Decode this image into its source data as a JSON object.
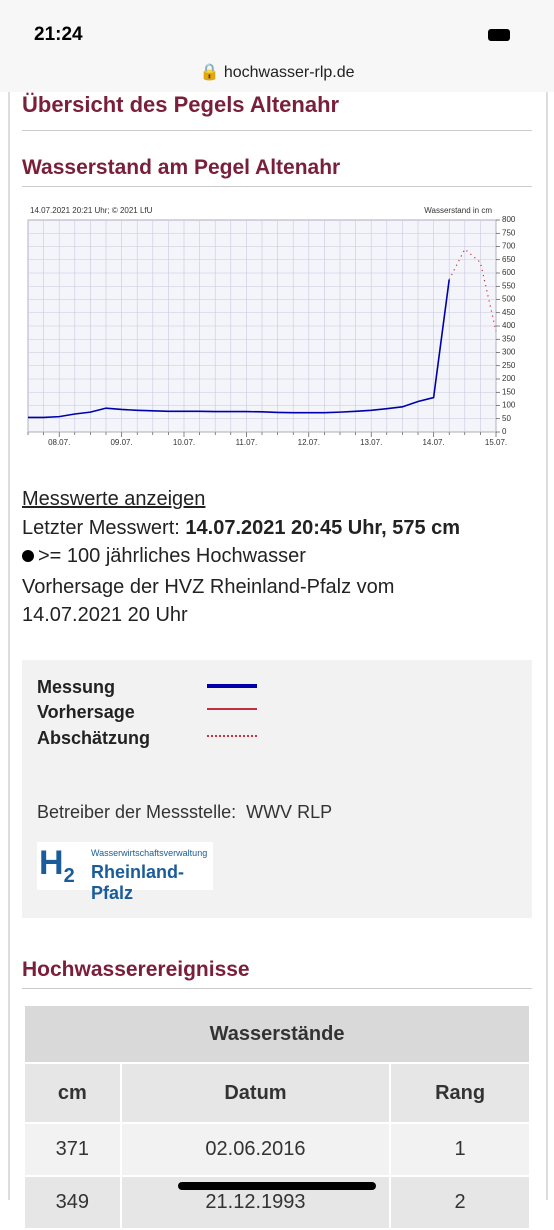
{
  "status": {
    "time": "21:24",
    "url": "hochwasser-rlp.de"
  },
  "heading": "Übersicht des Pegels Altenahr",
  "subheading": "Wasserstand am Pegel Altenahr",
  "chart_data": {
    "type": "line",
    "title": "14.07.2021 20:21 Uhr; © 2021 LfU",
    "y_label": "Wasserstand in cm",
    "categories": [
      null,
      null,
      "08.07.",
      null,
      null,
      null,
      "09.07.",
      null,
      null,
      null,
      "10.07.",
      null,
      null,
      null,
      "11.07.",
      null,
      null,
      null,
      "12.07.",
      null,
      null,
      null,
      "13.07.",
      null,
      null,
      null,
      "14.07.",
      null,
      null,
      null,
      "15.07."
    ],
    "series": [
      {
        "name": "Messung",
        "color": "#0000aa",
        "values": [
          55,
          55,
          58,
          68,
          75,
          90,
          85,
          82,
          80,
          78,
          78,
          78,
          77,
          77,
          77,
          76,
          74,
          73,
          73,
          73,
          75,
          78,
          82,
          88,
          95,
          115,
          130,
          575,
          null,
          null,
          null
        ]
      },
      {
        "name": "Abschätzung",
        "color": "#c03040",
        "values": [
          null,
          null,
          null,
          null,
          null,
          null,
          null,
          null,
          null,
          null,
          null,
          null,
          null,
          null,
          null,
          null,
          null,
          null,
          null,
          null,
          null,
          null,
          null,
          null,
          null,
          null,
          null,
          575,
          690,
          640,
          380
        ]
      }
    ],
    "ylim": [
      0,
      800
    ],
    "yticks": [
      0,
      50,
      100,
      150,
      200,
      250,
      300,
      350,
      400,
      450,
      500,
      550,
      600,
      650,
      700,
      750,
      800
    ],
    "grid": true
  },
  "info": {
    "link": "Messwerte anzeigen",
    "last_label": "Letzter Messwert:",
    "last_value": "14.07.2021 20:45 Uhr, 575 cm",
    "note": ">= 100 jährliches Hochwasser",
    "forecast": "Vorhersage der HVZ Rheinland-Pfalz vom 14.07.2021 20 Uhr"
  },
  "legend_box": {
    "forecast": "Vorhersage",
    "operator": "Betreiber der Messstelle:  WWV RLP",
    "logo_top": "Wasserwirtschaftsverwaltung",
    "logo_bottom": "Rheinland-Pfalz"
  },
  "events": {
    "heading": "Hochwasserereignisse",
    "caption": "Wasserstände",
    "headers": [
      "cm",
      "Datum",
      "Rang"
    ],
    "rows": [
      [
        "371",
        "02.06.2016",
        "1"
      ],
      [
        "349",
        "21.12.1993",
        "2"
      ]
    ]
  }
}
